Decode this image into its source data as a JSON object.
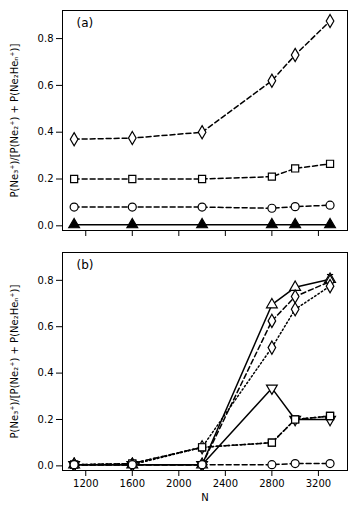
{
  "chart_data": [
    {
      "type": "line",
      "title": "(a)",
      "y_label": "P(Ne₃⁺)/[P(Ne₂⁺) + P(Ne₂Heₙ⁺)]",
      "x": [
        1100,
        1600,
        2200,
        2800,
        3000,
        3300
      ],
      "xlim": [
        1000,
        3450
      ],
      "ylim": [
        -0.02,
        0.92
      ],
      "xticks": [
        1200,
        1600,
        2000,
        2400,
        2800,
        3200
      ],
      "yticks": [
        {
          "value": 0.0,
          "label": "0.0"
        },
        0.2,
        0.4,
        0.6,
        0.8
      ],
      "tick_labels": "y",
      "series": [
        {
          "color": "black",
          "marker": "diamond",
          "line_style": "dashed",
          "values": [
            0.37,
            0.375,
            0.4,
            0.62,
            0.73,
            0.875
          ]
        },
        {
          "color": "black",
          "marker": "square",
          "line_style": "dashed",
          "values": [
            0.2,
            0.2,
            0.2,
            0.21,
            0.245,
            0.265
          ]
        },
        {
          "color": "black",
          "marker": "circle",
          "line_style": "dashed",
          "values": [
            0.08,
            0.08,
            0.08,
            0.075,
            0.082,
            0.088
          ]
        },
        {
          "color": "black",
          "marker": "filled-triangle",
          "line_style": "solid",
          "values": [
            0.005,
            0.005,
            0.005,
            0.005,
            0.005,
            0.005
          ]
        }
      ]
    },
    {
      "type": "line",
      "title": "(b)",
      "x_label": "N",
      "y_label": "P(Ne₃⁺)/[P(Ne₂⁺) + P(Ne₂Heₙ⁺)]",
      "x": [
        1100,
        1600,
        2200,
        2800,
        3000,
        3300
      ],
      "xlim": [
        1000,
        3450
      ],
      "ylim": [
        -0.02,
        0.92
      ],
      "xticks": [
        1200,
        1600,
        2000,
        2400,
        2800,
        3200
      ],
      "yticks": [
        {
          "value": 0.0,
          "label": "0.0"
        },
        0.2,
        0.4,
        0.6,
        0.8
      ],
      "series": [
        {
          "color": "black",
          "marker": "triangle",
          "line_style": "solid",
          "values": [
            0.005,
            0.005,
            0.005,
            0.695,
            0.77,
            0.805
          ],
          "yerr": [
            0.0,
            0.0,
            0.0,
            0.0,
            0.0,
            0.02
          ]
        },
        {
          "color": "black",
          "marker": "diamond",
          "line_style": "dashed",
          "values": [
            0.005,
            0.005,
            0.005,
            0.625,
            0.73,
            0.795
          ]
        },
        {
          "color": "black",
          "marker": "diamond",
          "line_style": "dotted",
          "values": [
            0.005,
            0.005,
            0.08,
            0.51,
            0.675,
            0.775
          ]
        },
        {
          "color": "black",
          "marker": "triangle-down",
          "line_style": "solid",
          "values": [
            0.005,
            0.005,
            0.005,
            0.335,
            0.2,
            0.2
          ]
        },
        {
          "color": "black",
          "marker": "square",
          "line_style": "dashed",
          "values": [
            0.005,
            0.01,
            0.08,
            0.1,
            0.2,
            0.215
          ]
        },
        {
          "color": "black",
          "marker": "square",
          "line_style": "dotted",
          "values": [
            0.005,
            0.01,
            0.08,
            0.1,
            0.2,
            0.215
          ]
        },
        {
          "color": "black",
          "marker": "circle",
          "line_style": "dashed",
          "values": [
            0.005,
            0.005,
            0.005,
            0.005,
            0.01,
            0.01
          ]
        }
      ]
    }
  ]
}
